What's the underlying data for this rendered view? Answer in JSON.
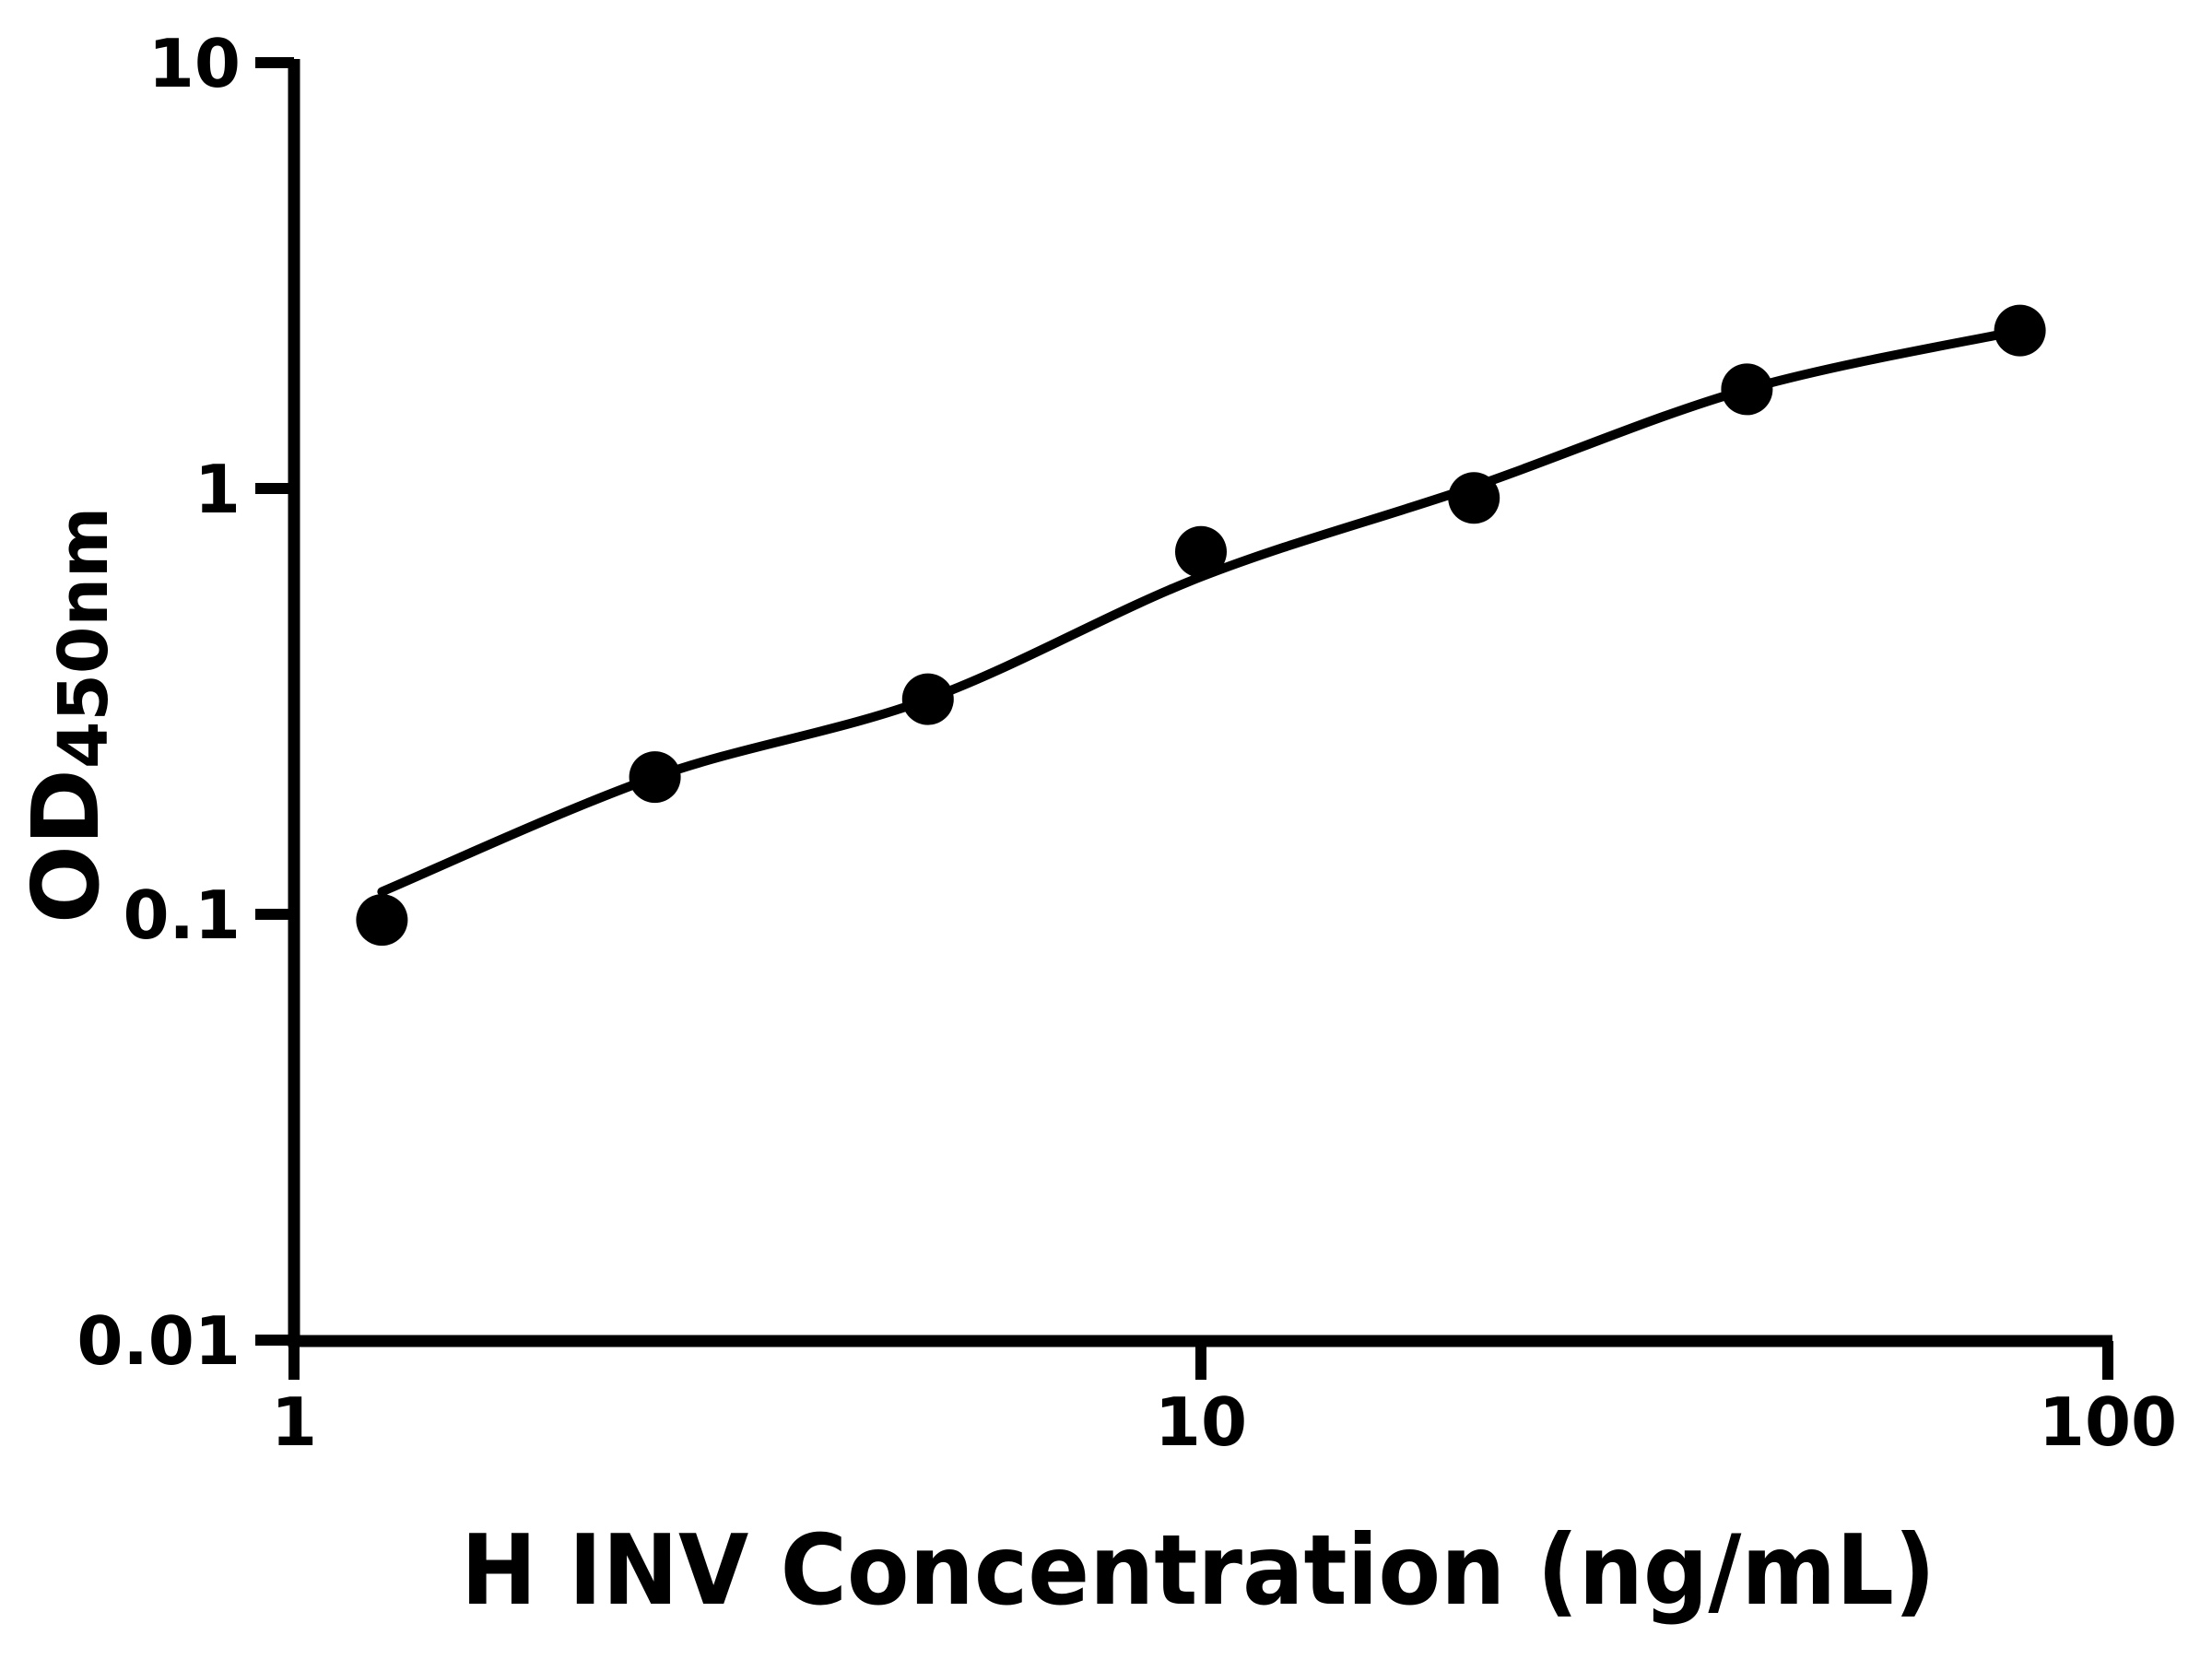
{
  "chart_data": {
    "type": "scatter",
    "title": "",
    "xlabel": "H INV Concentration (ng/mL)",
    "ylabel": "OD",
    "ylabel_sub": "450nm",
    "x_scale": "log10",
    "y_scale": "log10",
    "xlim": [
      1,
      100
    ],
    "ylim": [
      0.01,
      10
    ],
    "grid": false,
    "legend": "none",
    "x_ticks": [
      1,
      10,
      100
    ],
    "x_tick_labels": [
      "1",
      "10",
      "100"
    ],
    "y_ticks": [
      10,
      1,
      0.1,
      0.01
    ],
    "y_tick_labels": [
      "10",
      "1",
      "0.1",
      "0.01"
    ],
    "series": [
      {
        "name": "H INV standard points",
        "marker": "filled-circle",
        "color": "#000000",
        "x": [
          1.25,
          2.5,
          5,
          10,
          20,
          40,
          80
        ],
        "y": [
          0.097,
          0.21,
          0.32,
          0.71,
          0.95,
          1.71,
          2.35
        ]
      }
    ],
    "fit_curve": {
      "name": "standard curve fit line",
      "color": "#000000",
      "x": [
        1.25,
        2.5,
        5,
        10,
        20,
        40,
        80
      ],
      "y": [
        0.113,
        0.21,
        0.32,
        0.62,
        1.01,
        1.71,
        2.35
      ]
    }
  },
  "colors": {
    "foreground": "#000000",
    "background": "#ffffff"
  }
}
